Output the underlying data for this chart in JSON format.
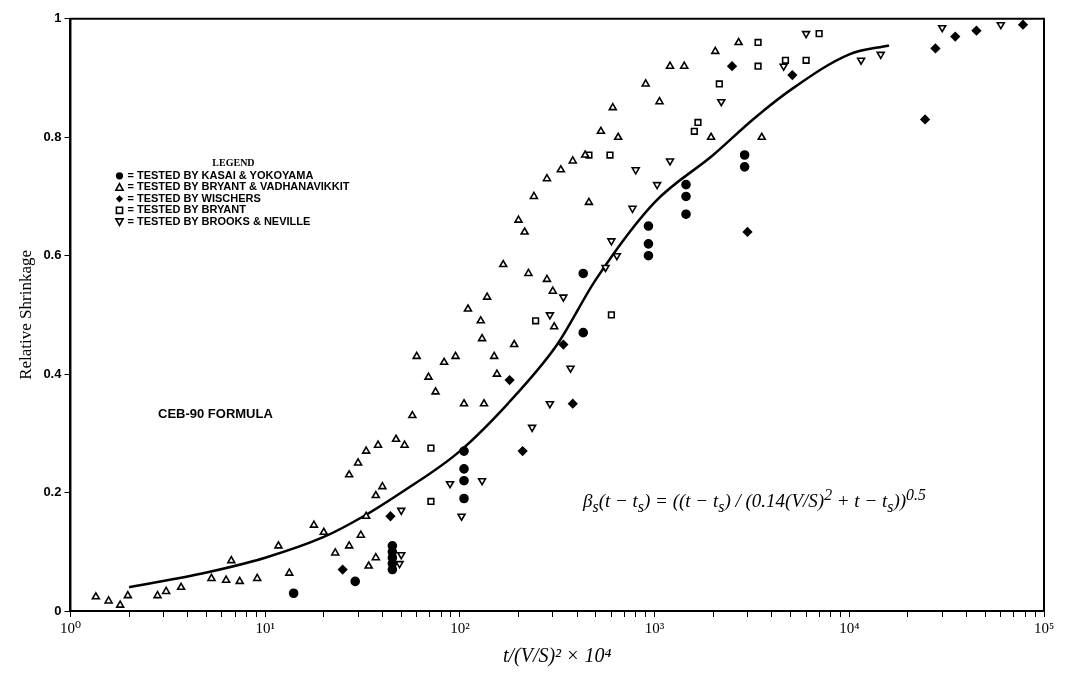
{
  "chart_data": {
    "type": "scatter",
    "xlabel": "t/(V/S)² × 10⁴",
    "ylabel": "Relative Shrinkage",
    "legend_title": "LEGEND",
    "legend": "left",
    "log": "x",
    "grid": false,
    "xlim": [
      1,
      100000
    ],
    "ylim": [
      0,
      1
    ],
    "xticks": [
      {
        "value": 1,
        "label": "10⁰"
      },
      {
        "value": 2,
        "label": null
      },
      {
        "value": 3,
        "label": null
      },
      {
        "value": 4,
        "label": null
      },
      {
        "value": 5,
        "label": null
      },
      {
        "value": 6,
        "label": null
      },
      {
        "value": 7,
        "label": null
      },
      {
        "value": 8,
        "label": null
      },
      {
        "value": 9,
        "label": null
      },
      {
        "value": 10,
        "label": "10¹"
      },
      {
        "value": 20,
        "label": null
      },
      {
        "value": 30,
        "label": null
      },
      {
        "value": 40,
        "label": null
      },
      {
        "value": 50,
        "label": null
      },
      {
        "value": 60,
        "label": null
      },
      {
        "value": 70,
        "label": null
      },
      {
        "value": 80,
        "label": null
      },
      {
        "value": 90,
        "label": null
      },
      {
        "value": 100,
        "label": "10²"
      },
      {
        "value": 200,
        "label": null
      },
      {
        "value": 300,
        "label": null
      },
      {
        "value": 400,
        "label": null
      },
      {
        "value": 500,
        "label": null
      },
      {
        "value": 600,
        "label": null
      },
      {
        "value": 700,
        "label": null
      },
      {
        "value": 800,
        "label": null
      },
      {
        "value": 900,
        "label": null
      },
      {
        "value": 1000,
        "label": "10³"
      },
      {
        "value": 2000,
        "label": null
      },
      {
        "value": 3000,
        "label": null
      },
      {
        "value": 4000,
        "label": null
      },
      {
        "value": 5000,
        "label": null
      },
      {
        "value": 6000,
        "label": null
      },
      {
        "value": 7000,
        "label": null
      },
      {
        "value": 8000,
        "label": null
      },
      {
        "value": 9000,
        "label": null
      },
      {
        "value": 10000,
        "label": "10⁴"
      },
      {
        "value": 20000,
        "label": null
      },
      {
        "value": 30000,
        "label": null
      },
      {
        "value": 40000,
        "label": null
      },
      {
        "value": 50000,
        "label": null
      },
      {
        "value": 60000,
        "label": null
      },
      {
        "value": 70000,
        "label": null
      },
      {
        "value": 80000,
        "label": null
      },
      {
        "value": 90000,
        "label": null
      },
      {
        "value": 100000,
        "label": "10⁵"
      }
    ],
    "yticks": [
      0,
      0.2,
      0.4,
      0.6,
      0.8,
      1
    ],
    "annotations": [
      "CEB-90 FORMULA",
      "β$_{s}$(t − t$_{s}$) = ((t − t$_{s}$) / (0.14(V/S)$^{2}$ + t − t$_{s}$))$^{0.5}$"
    ],
    "series": [
      {
        "name": "= TESTED BY KASAI & YOKOYAMA",
        "color": "#000000",
        "marker": "circle",
        "x": [
          14,
          29,
          45,
          45,
          45,
          45,
          45,
          105,
          105,
          105,
          105,
          430,
          430,
          930,
          930,
          930,
          1450,
          1450,
          1450,
          2900,
          2900
        ],
        "values": [
          0.03,
          0.05,
          0.07,
          0.08,
          0.09,
          0.1,
          0.11,
          0.27,
          0.24,
          0.22,
          0.19,
          0.57,
          0.47,
          0.65,
          0.62,
          0.6,
          0.72,
          0.7,
          0.67,
          0.77,
          0.75
        ]
      },
      {
        "name": "= TESTED BY BRYANT & VADHANAVIKKIT",
        "color": "#000000",
        "marker": "triangle",
        "x": [
          1.35,
          1.57,
          1.8,
          1.97,
          2.8,
          3.1,
          3.7,
          5.3,
          6.3,
          7.4,
          9.1,
          6.7,
          11.7,
          13.3,
          17.8,
          20,
          22.9,
          27,
          31,
          33,
          37,
          34,
          40,
          37,
          27,
          30,
          33,
          38,
          47,
          52,
          57,
          69,
          83,
          95,
          110,
          128,
          130,
          138,
          150,
          155,
          133,
          105,
          167,
          190,
          200,
          215,
          225,
          280,
          300,
          305,
          240,
          280,
          330,
          380,
          440,
          460,
          530,
          610,
          650,
          900,
          1060,
          1200,
          1420,
          1950,
          2050,
          2700,
          3550,
          75,
          60
        ],
        "values": [
          0.024,
          0.017,
          0.01,
          0.026,
          0.026,
          0.033,
          0.04,
          0.055,
          0.052,
          0.05,
          0.055,
          0.085,
          0.11,
          0.064,
          0.145,
          0.133,
          0.098,
          0.11,
          0.128,
          0.16,
          0.09,
          0.076,
          0.21,
          0.195,
          0.23,
          0.25,
          0.27,
          0.28,
          0.29,
          0.28,
          0.33,
          0.395,
          0.42,
          0.43,
          0.51,
          0.49,
          0.46,
          0.53,
          0.43,
          0.4,
          0.35,
          0.35,
          0.585,
          0.45,
          0.66,
          0.64,
          0.57,
          0.56,
          0.54,
          0.48,
          0.7,
          0.73,
          0.745,
          0.76,
          0.77,
          0.69,
          0.81,
          0.85,
          0.8,
          0.89,
          0.86,
          0.92,
          0.92,
          0.8,
          0.945,
          0.96,
          0.8,
          0.37,
          0.43
        ]
      },
      {
        "name": "= TESTED BY WISCHERS",
        "color": "#000000",
        "marker": "diamond",
        "x": [
          25,
          44,
          180,
          380,
          210,
          340,
          3000,
          24500,
          45000,
          78000,
          35000,
          27700,
          2500,
          5100
        ],
        "values": [
          0.07,
          0.16,
          0.39,
          0.35,
          0.27,
          0.45,
          0.64,
          0.83,
          0.98,
          0.99,
          0.97,
          0.95,
          0.92,
          0.905
        ]
      },
      {
        "name": "= TESTED BY BRYANT",
        "color": "#000000",
        "marker": "square",
        "x": [
          71,
          71,
          245,
          600,
          590,
          460,
          3400,
          6000,
          7000,
          1670,
          2150,
          3400,
          4700,
          1600
        ],
        "values": [
          0.275,
          0.185,
          0.49,
          0.5,
          0.77,
          0.77,
          0.92,
          0.93,
          0.975,
          0.825,
          0.89,
          0.96,
          0.93,
          0.81
        ]
      },
      {
        "name": "= TESTED BY BROOKS & NEVILLE",
        "color": "#000000",
        "marker": "triangle-down",
        "x": [
          49,
          50,
          50,
          89,
          102,
          130,
          235,
          290,
          370,
          340,
          290,
          640,
          560,
          600,
          770,
          1030,
          800,
          1200,
          2200,
          4600,
          6000,
          11500,
          14500,
          30000,
          60000
        ],
        "values": [
          0.08,
          0.095,
          0.17,
          0.215,
          0.16,
          0.22,
          0.31,
          0.35,
          0.41,
          0.53,
          0.5,
          0.6,
          0.58,
          0.625,
          0.68,
          0.72,
          0.745,
          0.76,
          0.86,
          0.92,
          0.975,
          0.93,
          0.94,
          0.985,
          0.99
        ]
      },
      {
        "type": "line",
        "color": "#000000",
        "marker": "none",
        "line_style": "solid",
        "x": [
          2,
          5,
          10,
          20,
          32,
          50,
          100,
          200,
          316,
          500,
          1000,
          2000,
          3200,
          5000,
          10000,
          16000
        ],
        "values": [
          0.04,
          0.065,
          0.09,
          0.125,
          0.16,
          0.2,
          0.27,
          0.37,
          0.45,
          0.56,
          0.69,
          0.77,
          0.83,
          0.88,
          0.94,
          0.955
        ]
      }
    ]
  }
}
